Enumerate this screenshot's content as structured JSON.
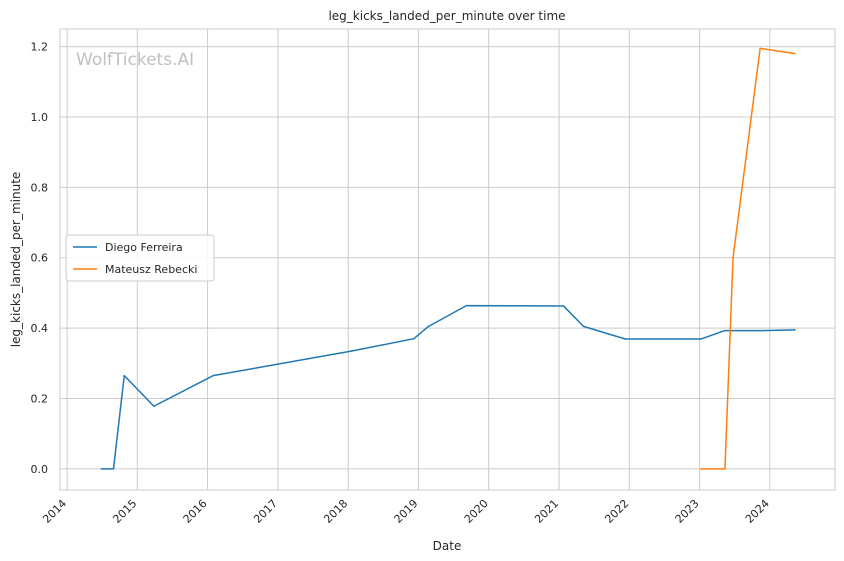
{
  "chart_data": {
    "type": "line",
    "title": "leg_kicks_landed_per_minute over time",
    "xlabel": "Date",
    "ylabel": "leg_kicks_landed_per_minute",
    "watermark": "WolfTickets.AI",
    "x_type": "date",
    "xlim": [
      "2013-11-25",
      "2024-12-05"
    ],
    "ylim": [
      -0.06,
      1.25
    ],
    "x_ticks": [
      "2014",
      "2015",
      "2016",
      "2017",
      "2018",
      "2019",
      "2020",
      "2021",
      "2022",
      "2023",
      "2024"
    ],
    "y_ticks": [
      "0.0",
      "0.2",
      "0.4",
      "0.6",
      "0.8",
      "1.0",
      "1.2"
    ],
    "grid": true,
    "legend_position": "center-left",
    "series": [
      {
        "name": "Diego Ferreira",
        "color": "#1f77b4",
        "points": [
          [
            "2014-06-28",
            0.0
          ],
          [
            "2014-08-30",
            0.0
          ],
          [
            "2014-10-25",
            0.265
          ],
          [
            "2015-03-28",
            0.178
          ],
          [
            "2016-01-30",
            0.265
          ],
          [
            "2018-01-20",
            0.335
          ],
          [
            "2018-12-08",
            0.37
          ],
          [
            "2019-02-23",
            0.405
          ],
          [
            "2019-09-07",
            0.464
          ],
          [
            "2021-01-24",
            0.463
          ],
          [
            "2021-05-08",
            0.405
          ],
          [
            "2021-12-11",
            0.369
          ],
          [
            "2023-01-07",
            0.369
          ],
          [
            "2023-05-13",
            0.393
          ],
          [
            "2023-11-18",
            0.393
          ],
          [
            "2024-05-11",
            0.395
          ]
        ]
      },
      {
        "name": "Mateusz Rebecki",
        "color": "#ff7f0e",
        "points": [
          [
            "2023-01-07",
            0.0
          ],
          [
            "2023-05-13",
            0.0
          ],
          [
            "2023-06-24",
            0.6
          ],
          [
            "2023-11-12",
            1.195
          ],
          [
            "2024-05-11",
            1.18
          ]
        ]
      }
    ]
  }
}
